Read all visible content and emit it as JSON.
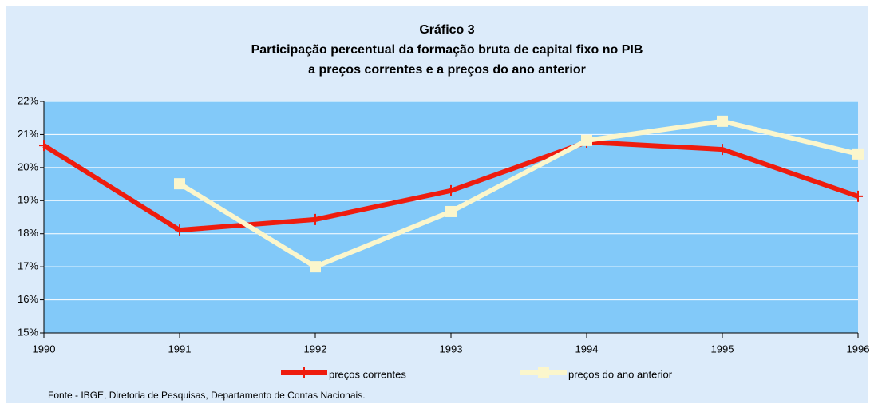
{
  "chart_data": {
    "type": "line",
    "title": "Gráfico 3",
    "subtitle": [
      "Participação percentual da formação bruta de capital fixo no PIB",
      "a preços correntes e a preços do ano anterior"
    ],
    "x": [
      1990,
      1991,
      1992,
      1993,
      1994,
      1995,
      1996
    ],
    "series": [
      {
        "name": "preços correntes",
        "color": "#ee1c0e",
        "marker": "plus",
        "values": [
          20.67,
          18.11,
          18.43,
          19.3,
          20.77,
          20.55,
          19.13
        ]
      },
      {
        "name": "preços do ano anterior",
        "color": "#fbf6cc",
        "marker": "square",
        "values": [
          null,
          19.51,
          17.0,
          18.67,
          20.82,
          21.4,
          20.41
        ]
      }
    ],
    "xlim": [
      1990,
      1996
    ],
    "xticks": [
      1990,
      1991,
      1992,
      1993,
      1994,
      1995,
      1996
    ],
    "ylim": [
      15,
      22
    ],
    "yticks": [
      {
        "value": 15,
        "label": "15%"
      },
      {
        "value": 16,
        "label": "16%"
      },
      {
        "value": 17,
        "label": "17%"
      },
      {
        "value": 18,
        "label": "18%"
      },
      {
        "value": 19,
        "label": "19%"
      },
      {
        "value": 20,
        "label": "20%"
      },
      {
        "value": 21,
        "label": "21%"
      },
      {
        "value": 22,
        "label": "22%"
      }
    ],
    "grid": true,
    "legend": "bottom",
    "source": "Fonte - IBGE, Diretoria de Pesquisas, Departamento de Contas Nacionais."
  }
}
